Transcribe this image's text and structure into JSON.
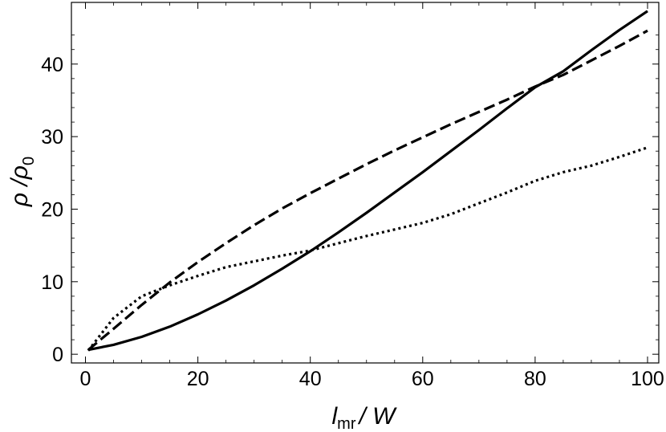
{
  "chart_data": {
    "type": "line",
    "xlabel": {
      "main": "l",
      "sub": "mr",
      "rest": "/ W"
    },
    "ylabel": {
      "main": "ρ /ρ",
      "sub": "0"
    },
    "xlim": [
      -2.5,
      102
    ],
    "ylim": [
      -1.2,
      48.5
    ],
    "x_ticks": [
      0,
      20,
      40,
      60,
      80,
      100
    ],
    "y_ticks": [
      0,
      10,
      20,
      30,
      40
    ],
    "grid": false,
    "series": [
      {
        "style": "solid",
        "x": [
          0.5,
          5,
          10,
          15,
          20,
          25,
          30,
          35,
          40,
          45,
          50,
          55,
          60,
          65,
          70,
          75,
          80,
          85,
          90,
          95,
          100
        ],
        "y": [
          0.6,
          1.3,
          2.4,
          3.8,
          5.5,
          7.4,
          9.5,
          11.8,
          14.2,
          16.8,
          19.5,
          22.3,
          25.1,
          28.0,
          30.9,
          33.9,
          36.8,
          39.0,
          41.9,
          44.7,
          47.3
        ]
      },
      {
        "style": "dashed",
        "x": [
          0.5,
          5,
          10,
          15,
          20,
          25,
          30,
          35,
          40,
          45,
          50,
          55,
          60,
          65,
          70,
          75,
          80,
          85,
          90,
          95,
          100
        ],
        "y": [
          0.6,
          3.5,
          6.8,
          9.9,
          12.7,
          15.3,
          17.8,
          20.1,
          22.2,
          24.2,
          26.2,
          28.1,
          29.9,
          31.7,
          33.4,
          35.1,
          36.9,
          38.5,
          40.5,
          42.5,
          44.6
        ]
      },
      {
        "style": "dotted",
        "x": [
          0.5,
          5,
          10,
          15,
          20,
          25,
          30,
          35,
          40,
          45,
          50,
          55,
          60,
          65,
          70,
          75,
          80,
          85,
          90,
          95,
          100
        ],
        "y": [
          0.5,
          5.0,
          8.0,
          9.5,
          10.8,
          12.0,
          12.8,
          13.6,
          14.3,
          15.3,
          16.3,
          17.2,
          18.1,
          19.3,
          20.8,
          22.3,
          23.9,
          25.1,
          26.0,
          27.2,
          28.5
        ]
      }
    ]
  }
}
